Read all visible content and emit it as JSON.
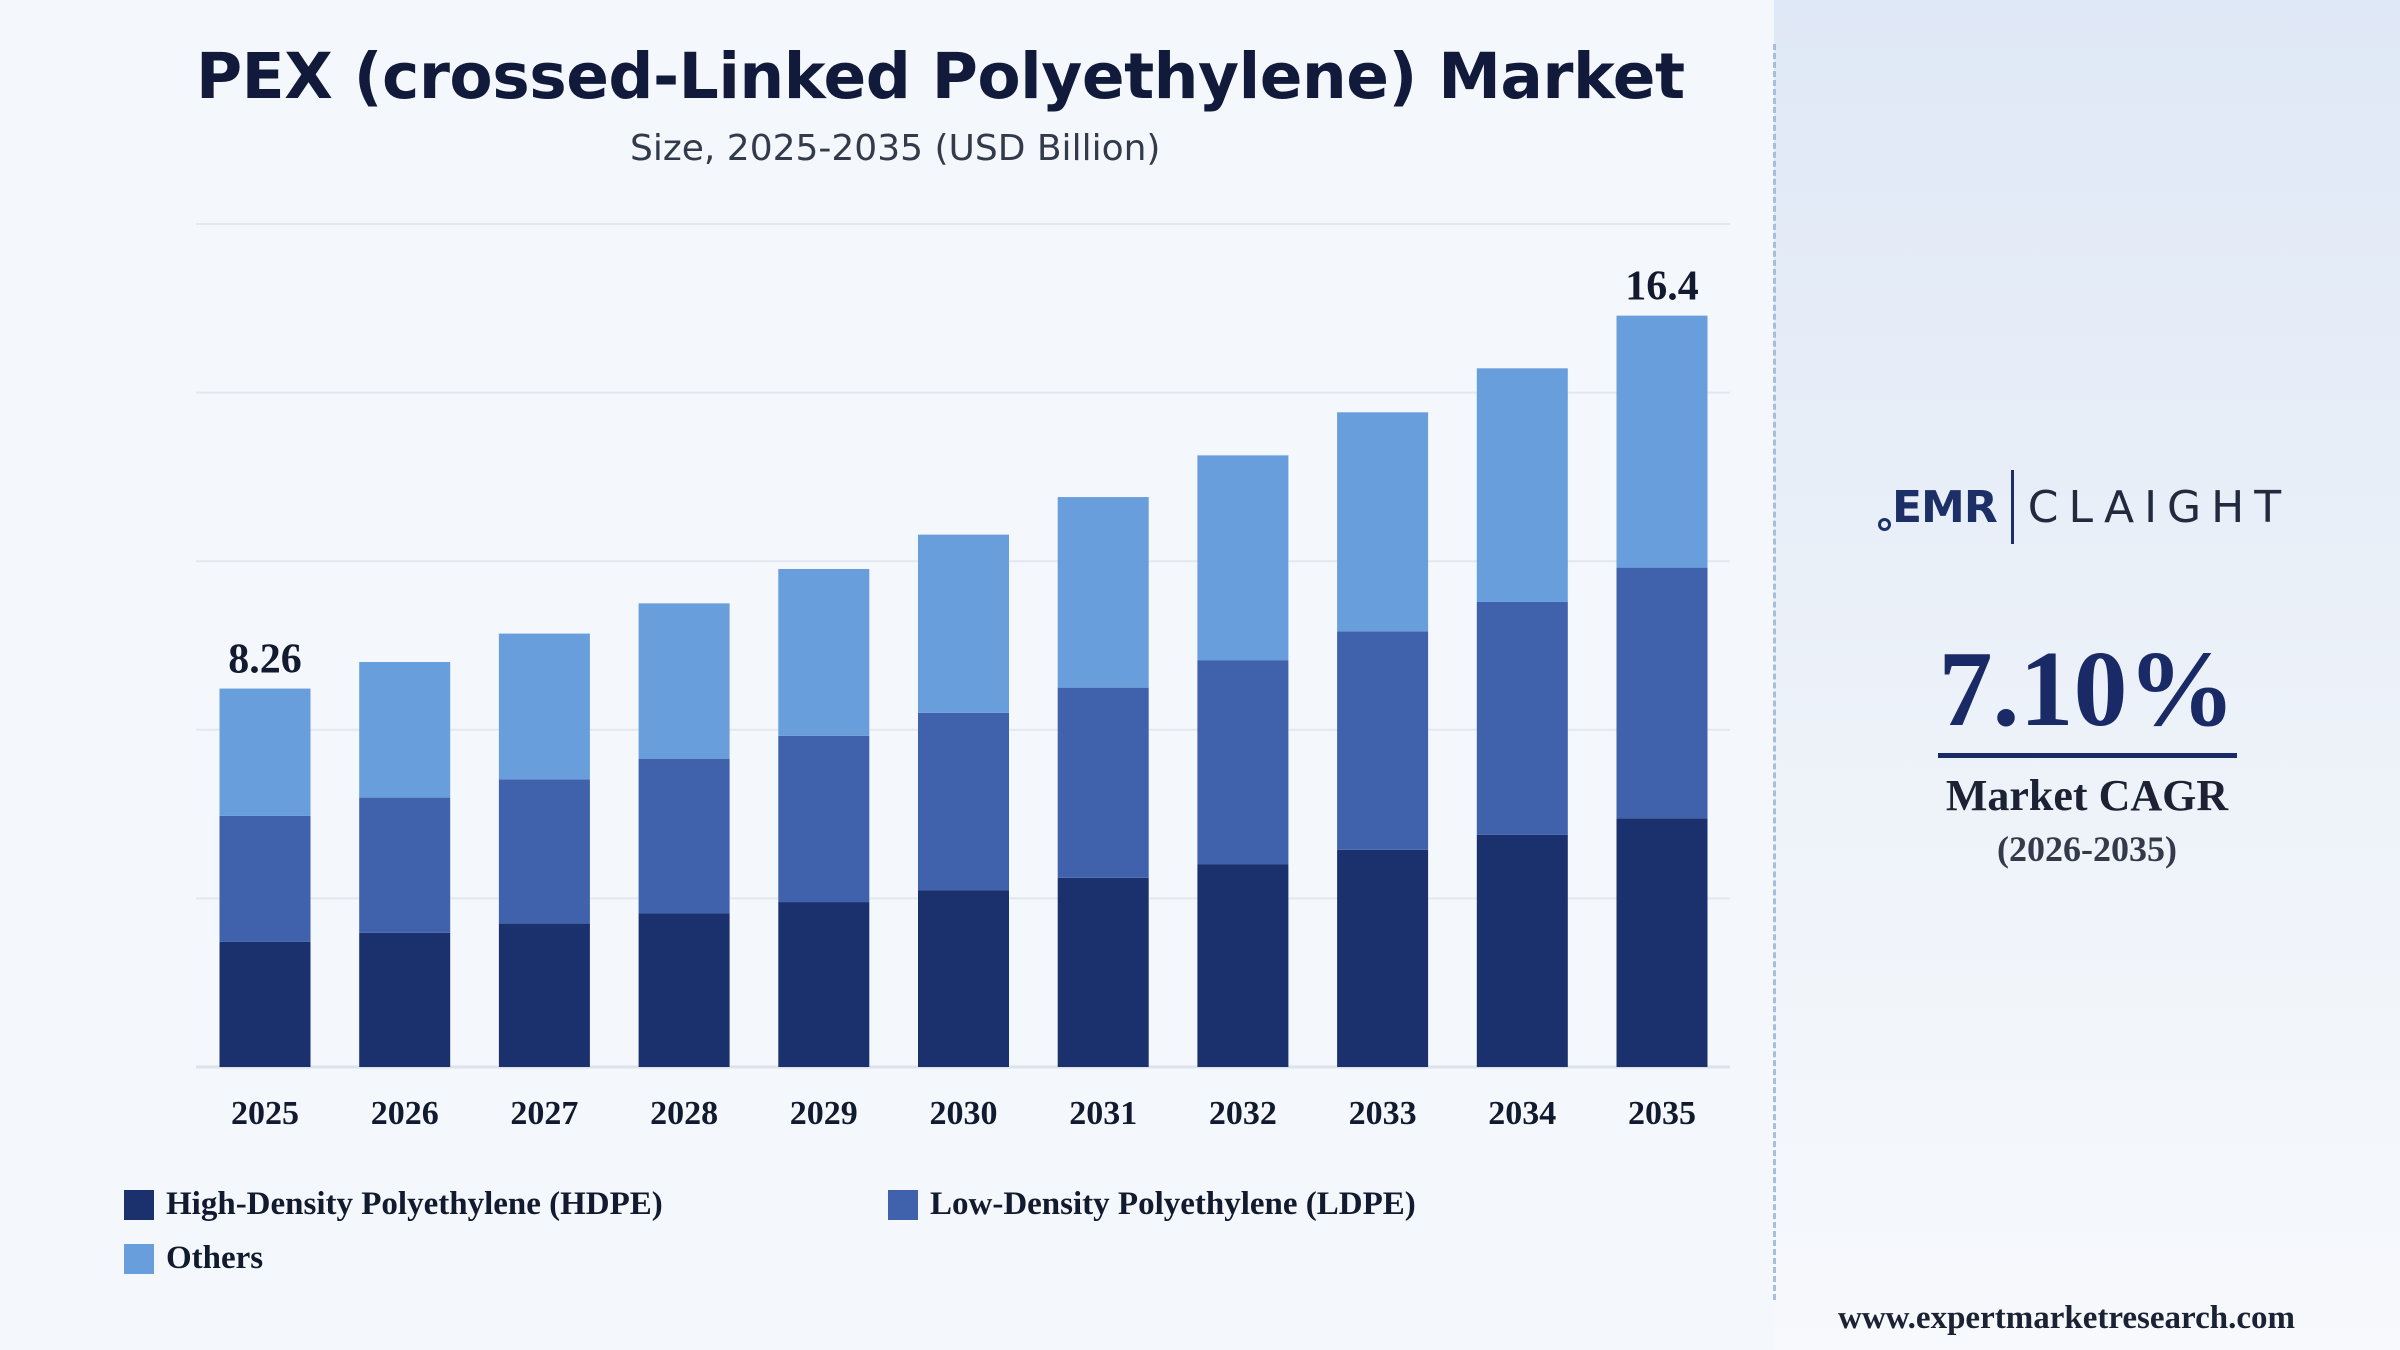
{
  "chart_data": {
    "type": "bar",
    "stacked": true,
    "title": "PEX (crossed-Linked Polyethylene) Market",
    "subtitle": "Size, 2025-2035 (USD Billion)",
    "categories": [
      "2025",
      "2026",
      "2027",
      "2028",
      "2029",
      "2030",
      "2031",
      "2032",
      "2033",
      "2034",
      "2035"
    ],
    "series": [
      {
        "name": "High-Density Polyethylene (HDPE)",
        "color": "#1b316e",
        "values": [
          2.73,
          2.93,
          3.13,
          3.35,
          3.6,
          3.86,
          4.13,
          4.42,
          4.74,
          5.07,
          5.43
        ]
      },
      {
        "name": "Low-Density Polyethylene (LDPE)",
        "color": "#4062ad",
        "values": [
          2.75,
          2.95,
          3.15,
          3.38,
          3.63,
          3.87,
          4.15,
          4.46,
          4.77,
          5.08,
          5.47
        ]
      },
      {
        "name": "Others",
        "color": "#699edd",
        "values": [
          2.78,
          2.96,
          3.18,
          3.39,
          3.64,
          3.89,
          4.16,
          4.47,
          4.78,
          5.1,
          5.5
        ]
      }
    ],
    "totals": [
      8.26,
      8.84,
      9.46,
      10.12,
      10.87,
      11.62,
      12.44,
      13.35,
      14.29,
      15.25,
      16.4
    ],
    "data_labels": [
      {
        "category": "2025",
        "text": "8.26"
      },
      {
        "category": "2035",
        "text": "16.4"
      }
    ],
    "ylim": [
      0,
      18.4
    ],
    "y_gridlines": [
      3.68,
      7.36,
      11.04,
      14.72,
      18.4
    ],
    "grid": true,
    "legend_position": "bottom-left"
  },
  "brand": {
    "logo_left": "EMR",
    "logo_right": "CLAIGHT",
    "website": "www.expertmarketresearch.com"
  },
  "cagr": {
    "value": "7.10%",
    "label": "Market CAGR",
    "period": "(2026-2035)"
  },
  "colors": {
    "hdpe": "#1b316e",
    "ldpe": "#4062ad",
    "others": "#699edd",
    "accent": "#1a2a66"
  }
}
